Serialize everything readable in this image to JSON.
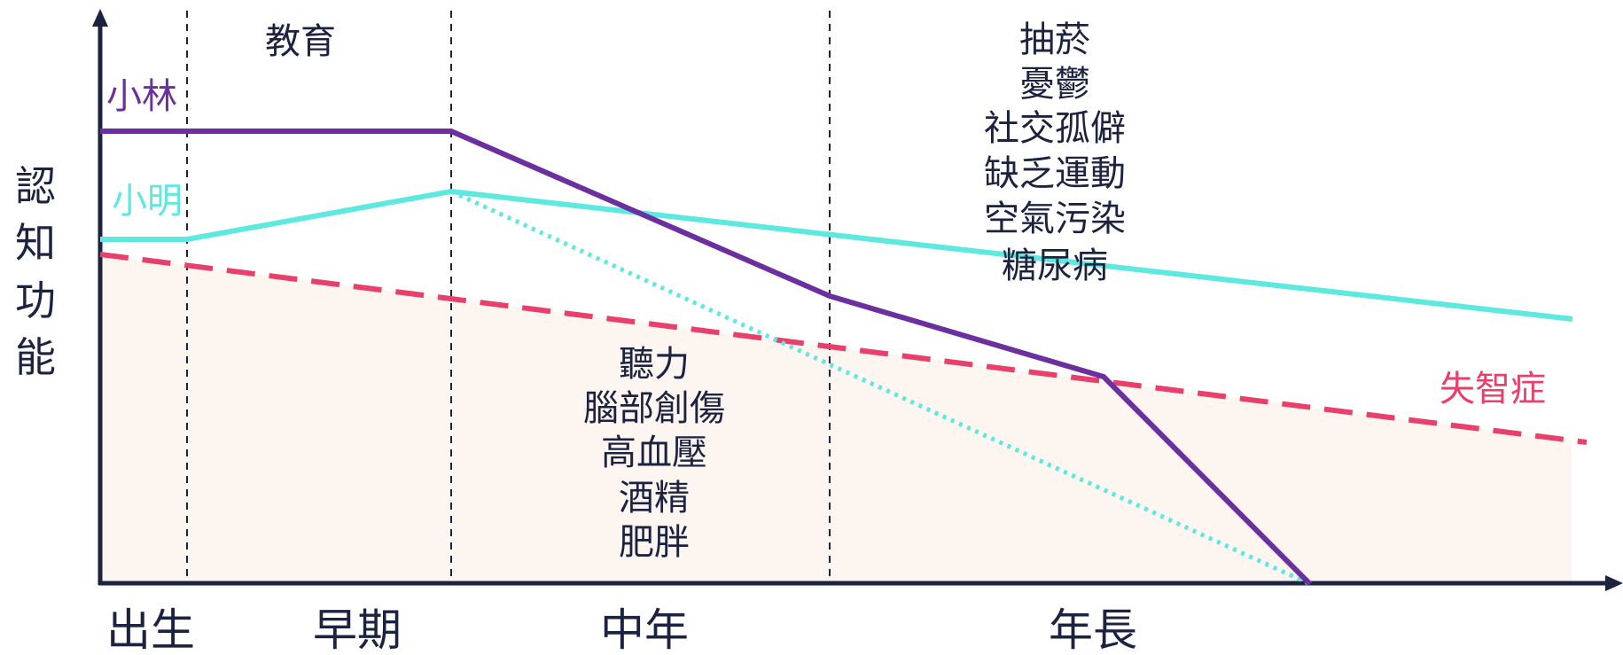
{
  "y_axis_label": [
    "認",
    "知",
    "功",
    "能"
  ],
  "stages": [
    "出生",
    "早期",
    "中年",
    "年長"
  ],
  "top_labels": {
    "education": "教育"
  },
  "middle_factors": [
    "聽力",
    "腦部創傷",
    "高血壓",
    "酒精",
    "肥胖"
  ],
  "late_factors": [
    "抽菸",
    "憂鬱",
    "社交孤僻",
    "缺乏運動",
    "空氣污染",
    "糖尿病"
  ],
  "series": {
    "lin": {
      "name": "小林",
      "color": "#6b2fa0"
    },
    "ming": {
      "name": "小明",
      "color": "#5de8e0"
    },
    "dementia": {
      "name": "失智症",
      "color": "#e8406a"
    }
  },
  "colors": {
    "axis": "#1c2340",
    "shade": "#fcf5f0"
  }
}
